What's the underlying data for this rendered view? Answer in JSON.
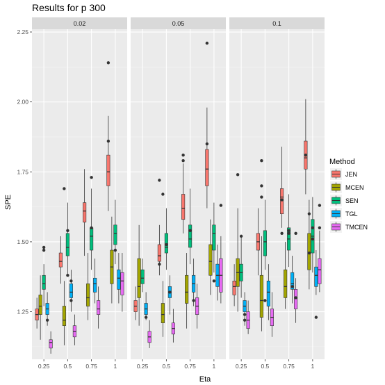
{
  "chart_data": {
    "type": "box",
    "title": "Results for p 300",
    "xlabel": "Eta",
    "ylabel": "SPE",
    "ylim": [
      1.08,
      2.26
    ],
    "y_ticks": [
      "1.25",
      "1.50",
      "1.75",
      "2.00",
      "2.25"
    ],
    "y_tick_values": [
      1.25,
      1.5,
      1.75,
      2.0,
      2.25
    ],
    "grid": true,
    "legend": {
      "title": "Method",
      "position": "right"
    },
    "categories": [
      "0.25",
      "0.5",
      "0.75",
      "1"
    ],
    "methods": [
      {
        "name": "JEN",
        "color": "#F8766D"
      },
      {
        "name": "MCEN",
        "color": "#A3A500"
      },
      {
        "name": "SEN",
        "color": "#00BF7D"
      },
      {
        "name": "TGL",
        "color": "#00B0F6"
      },
      {
        "name": "TMCEN",
        "color": "#E76BF3"
      }
    ],
    "panels": [
      {
        "label": "0.02",
        "boxes": [
          [
            [
              1.19,
              1.22,
              1.24,
              1.26,
              1.3,
              []
            ],
            [
              1.15,
              1.24,
              1.27,
              1.31,
              1.38,
              []
            ],
            [
              1.27,
              1.33,
              1.35,
              1.38,
              1.42,
              [
                1.47,
                1.48
              ]
            ],
            [
              1.2,
              1.24,
              1.26,
              1.28,
              1.32,
              [
                1.22
              ]
            ],
            [
              1.1,
              1.12,
              1.14,
              1.15,
              1.18,
              []
            ]
          ],
          [
            [
              1.35,
              1.41,
              1.43,
              1.46,
              1.52,
              []
            ],
            [
              1.13,
              1.2,
              1.22,
              1.27,
              1.36,
              [
                1.69
              ]
            ],
            [
              1.38,
              1.45,
              1.48,
              1.53,
              1.64,
              [
                1.54,
                1.38
              ]
            ],
            [
              1.25,
              1.3,
              1.32,
              1.35,
              1.4,
              [
                1.36,
                1.29
              ]
            ],
            [
              1.13,
              1.16,
              1.18,
              1.2,
              1.24,
              []
            ]
          ],
          [
            [
              1.45,
              1.57,
              1.61,
              1.64,
              1.76,
              []
            ],
            [
              1.22,
              1.27,
              1.3,
              1.35,
              1.46,
              []
            ],
            [
              1.4,
              1.47,
              1.52,
              1.55,
              1.69,
              [
                1.73,
                1.55
              ]
            ],
            [
              1.28,
              1.32,
              1.35,
              1.37,
              1.44,
              []
            ],
            [
              1.19,
              1.24,
              1.26,
              1.29,
              1.34,
              []
            ]
          ],
          [
            [
              1.61,
              1.7,
              1.75,
              1.81,
              1.95,
              [
                1.86,
                2.14
              ]
            ],
            [
              1.28,
              1.35,
              1.41,
              1.47,
              1.59,
              []
            ],
            [
              1.42,
              1.49,
              1.53,
              1.56,
              1.65,
              [
                1.47
              ]
            ],
            [
              1.28,
              1.33,
              1.37,
              1.4,
              1.46,
              []
            ],
            [
              1.25,
              1.31,
              1.36,
              1.39,
              1.46,
              []
            ]
          ]
        ]
      },
      {
        "label": "0.05",
        "boxes": [
          [
            [
              1.22,
              1.25,
              1.27,
              1.29,
              1.34,
              []
            ],
            [
              1.2,
              1.3,
              1.34,
              1.44,
              1.56,
              []
            ],
            [
              1.32,
              1.35,
              1.37,
              1.4,
              1.44,
              []
            ],
            [
              1.22,
              1.24,
              1.26,
              1.28,
              1.32,
              [
                1.23
              ]
            ],
            [
              1.12,
              1.14,
              1.16,
              1.18,
              1.22,
              []
            ]
          ],
          [
            [
              1.38,
              1.43,
              1.45,
              1.49,
              1.56,
              [
                1.72,
                1.42
              ]
            ],
            [
              1.16,
              1.21,
              1.24,
              1.28,
              1.36,
              [
                1.67
              ]
            ],
            [
              1.4,
              1.46,
              1.48,
              1.53,
              1.62,
              [
                1.49
              ]
            ],
            [
              1.24,
              1.3,
              1.32,
              1.34,
              1.38,
              [
                1.32
              ]
            ],
            [
              1.14,
              1.17,
              1.19,
              1.21,
              1.26,
              []
            ]
          ],
          [
            [
              1.53,
              1.58,
              1.62,
              1.67,
              1.78,
              [
                1.79,
                1.81
              ]
            ],
            [
              1.19,
              1.28,
              1.32,
              1.38,
              1.46,
              []
            ],
            [
              1.42,
              1.48,
              1.51,
              1.56,
              1.69,
              [
                1.54
              ]
            ],
            [
              1.27,
              1.32,
              1.35,
              1.38,
              1.44,
              [
                1.29
              ]
            ],
            [
              1.19,
              1.24,
              1.27,
              1.3,
              1.35,
              []
            ]
          ],
          [
            [
              1.62,
              1.7,
              1.76,
              1.83,
              1.98,
              [
                1.85,
                2.21
              ]
            ],
            [
              1.31,
              1.38,
              1.43,
              1.49,
              1.58,
              []
            ],
            [
              1.39,
              1.47,
              1.53,
              1.56,
              1.64,
              [
                1.36
              ]
            ],
            [
              1.29,
              1.34,
              1.38,
              1.42,
              1.49,
              []
            ],
            [
              1.28,
              1.32,
              1.38,
              1.44,
              1.52,
              [
                1.63
              ]
            ]
          ]
        ]
      },
      {
        "label": "0.1",
        "boxes": [
          [
            [
              1.27,
              1.31,
              1.34,
              1.36,
              1.42,
              []
            ],
            [
              1.25,
              1.34,
              1.39,
              1.44,
              1.62,
              [
                1.74
              ]
            ],
            [
              1.3,
              1.36,
              1.39,
              1.42,
              1.52,
              [
                1.52
              ]
            ],
            [
              1.2,
              1.25,
              1.27,
              1.29,
              1.32,
              [
                1.24,
                1.22
              ]
            ],
            [
              1.17,
              1.19,
              1.22,
              1.25,
              1.29,
              []
            ]
          ],
          [
            [
              1.38,
              1.47,
              1.5,
              1.53,
              1.62,
              []
            ],
            [
              1.18,
              1.23,
              1.29,
              1.38,
              1.52,
              [
                1.79,
                1.7,
                1.66
              ]
            ],
            [
              1.4,
              1.45,
              1.5,
              1.54,
              1.65,
              [
                1.29
              ]
            ],
            [
              1.22,
              1.27,
              1.32,
              1.36,
              1.42,
              []
            ],
            [
              1.16,
              1.2,
              1.23,
              1.26,
              1.32,
              []
            ]
          ],
          [
            [
              1.55,
              1.6,
              1.66,
              1.69,
              1.84,
              [
                1.53,
                1.65
              ]
            ],
            [
              1.26,
              1.3,
              1.34,
              1.4,
              1.5,
              []
            ],
            [
              1.41,
              1.47,
              1.51,
              1.55,
              1.67,
              [
                1.53,
                1.54
              ]
            ],
            [
              1.28,
              1.33,
              1.35,
              1.39,
              1.45,
              [
                1.34
              ]
            ],
            [
              1.21,
              1.26,
              1.3,
              1.33,
              1.37,
              [
                1.53,
                1.3
              ]
            ]
          ],
          [
            [
              1.67,
              1.76,
              1.8,
              1.86,
              2.01,
              [
                1.81
              ]
            ],
            [
              1.33,
              1.4,
              1.46,
              1.53,
              1.65,
              [
                1.46,
                1.6
              ]
            ],
            [
              1.39,
              1.46,
              1.52,
              1.58,
              1.66,
              [
                1.51,
                1.55
              ]
            ],
            [
              1.31,
              1.34,
              1.38,
              1.41,
              1.47,
              [
                1.23
              ]
            ],
            [
              1.32,
              1.35,
              1.4,
              1.44,
              1.54,
              [
                1.55,
                1.63
              ]
            ]
          ]
        ]
      }
    ]
  }
}
